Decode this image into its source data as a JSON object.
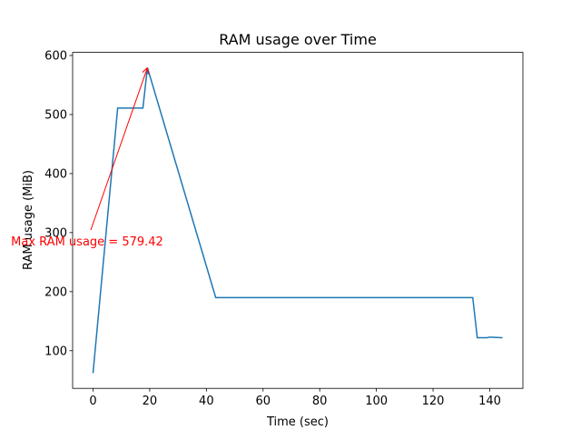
{
  "chart_data": {
    "type": "line",
    "title": "RAM usage over Time",
    "x_label": "Time (sec)",
    "y_label": "RAM usage (MiB)",
    "x": [
      0,
      8.7,
      17.6,
      19.2,
      43.3,
      134,
      135.6,
      139,
      140,
      144.5
    ],
    "values": [
      62,
      511,
      511,
      579.42,
      190,
      190,
      122,
      122,
      123,
      122
    ],
    "color": "#1f77b4",
    "xlim": [
      -7.2,
      151.7
    ],
    "xticks": [
      0,
      20,
      40,
      60,
      80,
      100,
      120,
      140
    ],
    "ylim": [
      36.2,
      605.3
    ],
    "yticks": [
      100,
      200,
      300,
      400,
      500,
      600
    ],
    "annotation": {
      "text": "Max RAM usage = 579.42",
      "color": "red"
    }
  }
}
